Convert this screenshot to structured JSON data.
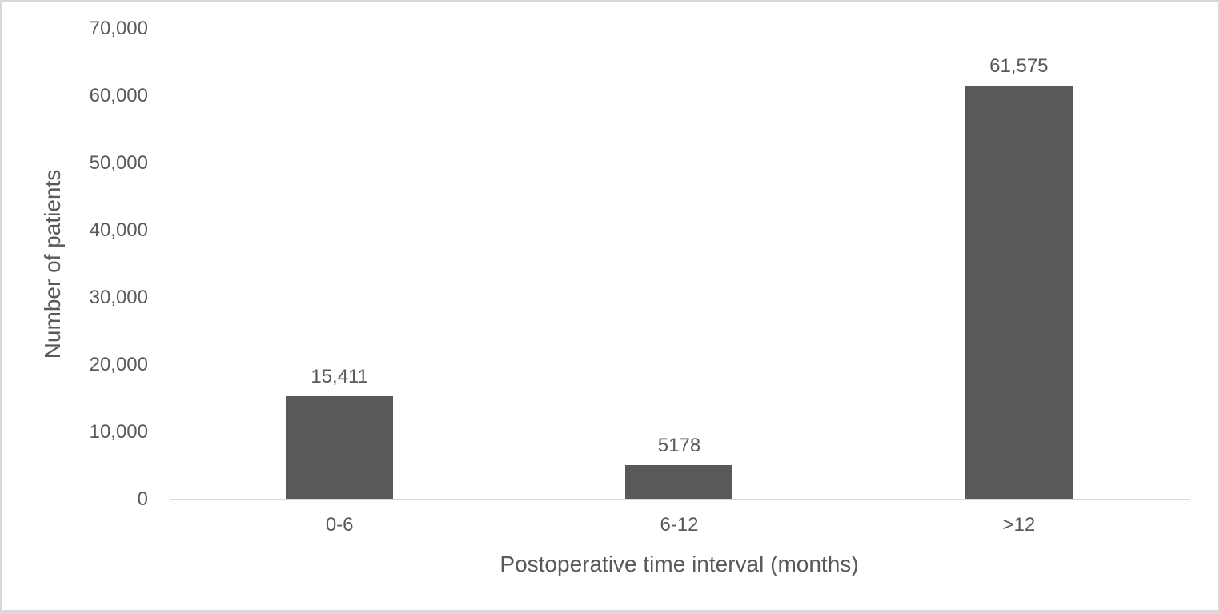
{
  "chart_data": {
    "type": "bar",
    "categories": [
      "0-6",
      "6-12",
      ">12"
    ],
    "values": [
      15411,
      5178,
      61575
    ],
    "value_labels": [
      "15,411",
      "5178",
      "61,575"
    ],
    "title": "",
    "xlabel": "Postoperative time interval (months)",
    "ylabel": "Number of patients",
    "ylim": [
      0,
      70000
    ],
    "ytick_interval": 10000,
    "ytick_labels": [
      "0",
      "10,000",
      "20,000",
      "30,000",
      "40,000",
      "50,000",
      "60,000",
      "70,000"
    ],
    "grid": false,
    "legend": "none",
    "bar_color": "#595959",
    "axis_line_color": "#d9d9d9",
    "text_color": "#595959",
    "background_color": "#ffffff"
  }
}
